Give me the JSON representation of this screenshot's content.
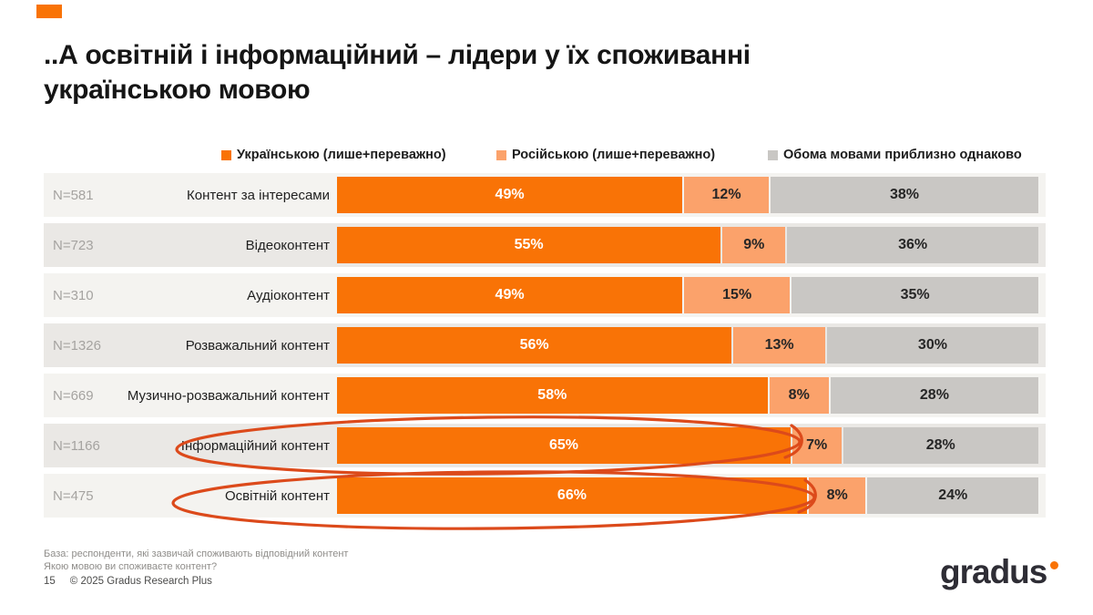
{
  "slide": {
    "title_line1": "..А освітній і інформаційний – лідери у їх споживанні",
    "title_line2": "українською мовою",
    "footnote_line1": "База: респонденти, які зазвичай споживають відповідний контент",
    "footnote_line2": "Якою мовою ви споживаєте контент?",
    "page_number": "15",
    "copyright": "© 2025 Gradus Research Plus",
    "logo_text": "gradus"
  },
  "colors": {
    "ukrainian": "#F97306",
    "russian": "#FBA26B",
    "both": "#C9C7C4",
    "row_bg_light": "#F4F3F0",
    "row_bg_dark": "#EAE8E5",
    "annotation": "#DC4A1B",
    "accent": "#F97306"
  },
  "legend": [
    {
      "label": "Українською (лише+переважно)",
      "color": "#F97306"
    },
    {
      "label": "Російською (лише+переважно)",
      "color": "#FBA26B"
    },
    {
      "label": "Обома мовами приблизно однаково",
      "color": "#C9C7C4"
    }
  ],
  "chart_data": {
    "type": "bar",
    "orientation": "horizontal",
    "stacked": true,
    "unit": "%",
    "categories": [
      "Контент за інтересами",
      "Відеоконтент",
      "Аудіоконтент",
      "Розважальний контент",
      "Музично-розважальний контент",
      "Інформаційний контент",
      "Освітній контент"
    ],
    "n_values": [
      "N=581",
      "N=723",
      "N=310",
      "N=1326",
      "N=669",
      "N=1166",
      "N=475"
    ],
    "series": [
      {
        "name": "Українською (лише+переважно)",
        "values": [
          49,
          55,
          49,
          56,
          58,
          65,
          66
        ]
      },
      {
        "name": "Російською (лише+переважно)",
        "values": [
          12,
          9,
          15,
          13,
          8,
          7,
          8
        ]
      },
      {
        "name": "Обома мовами приблизно однаково",
        "values": [
          38,
          36,
          35,
          30,
          28,
          28,
          24
        ]
      }
    ],
    "highlighted_categories": [
      "Інформаційний контент",
      "Освітній контент"
    ],
    "legend_position": "top",
    "grid": false
  }
}
